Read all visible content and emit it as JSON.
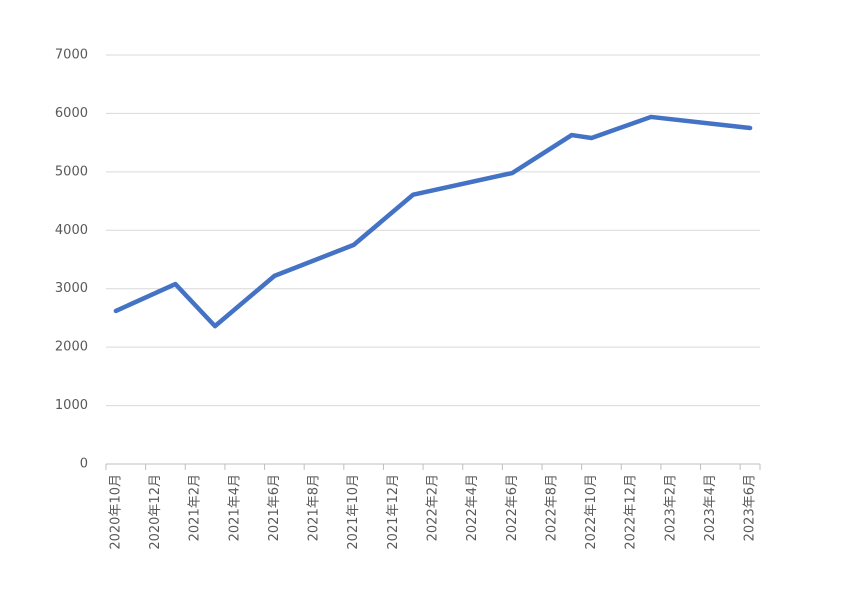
{
  "chart_data": {
    "type": "line",
    "x": [
      "2020年10月",
      "2021年1月",
      "2021年3月",
      "2021年6月",
      "2021年10月",
      "2022年1月",
      "2022年6月",
      "2022年9月",
      "2022年10月",
      "2023年1月",
      "2023年6月"
    ],
    "series": [
      {
        "color": "#4472c4",
        "values": [
          2620,
          3080,
          2360,
          3220,
          3750,
          4610,
          4980,
          5630,
          5580,
          5940,
          5750
        ]
      }
    ],
    "xticks": [
      "2020年10月",
      "2020年12月",
      "2021年2月",
      "2021年4月",
      "2021年6月",
      "2021年8月",
      "2021年10月",
      "2021年12月",
      "2022年2月",
      "2022年4月",
      "2022年6月",
      "2022年8月",
      "2022年10月",
      "2022年12月",
      "2023年2月",
      "2023年4月",
      "2023年6月"
    ],
    "ylim": [
      0,
      7000
    ],
    "yticks": [
      0,
      1000,
      2000,
      3000,
      4000,
      5000,
      6000,
      7000
    ],
    "grid": true
  }
}
